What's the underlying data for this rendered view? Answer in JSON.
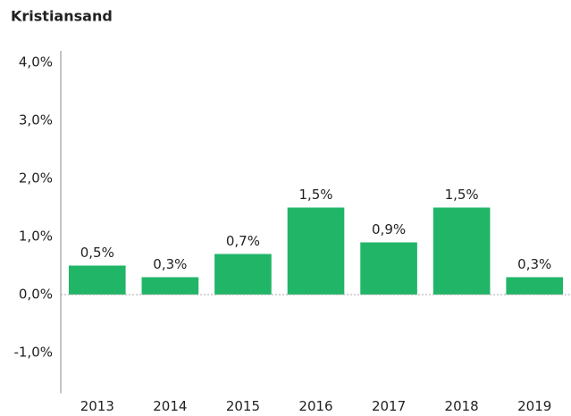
{
  "chart_data": {
    "type": "bar",
    "title": "Kristiansand",
    "categories": [
      "2013",
      "2014",
      "2015",
      "2016",
      "2017",
      "2018",
      "2019"
    ],
    "values": [
      0.5,
      0.3,
      0.7,
      1.5,
      0.9,
      1.5,
      0.3
    ],
    "value_labels": [
      "0,5%",
      "0,3%",
      "0,7%",
      "1,5%",
      "0,9%",
      "1,5%",
      "0,3%"
    ],
    "color": "#21b568",
    "ylim": [
      -1.7,
      4.2
    ],
    "yticks": [
      {
        "value": -1,
        "label": "-1,0%"
      },
      {
        "value": 0,
        "label": "0,0%"
      },
      {
        "value": 1,
        "label": "1,0%"
      },
      {
        "value": 2,
        "label": "2,0%"
      },
      {
        "value": 3,
        "label": "3,0%"
      },
      {
        "value": 4,
        "label": "4,0%"
      }
    ],
    "grid": false
  }
}
